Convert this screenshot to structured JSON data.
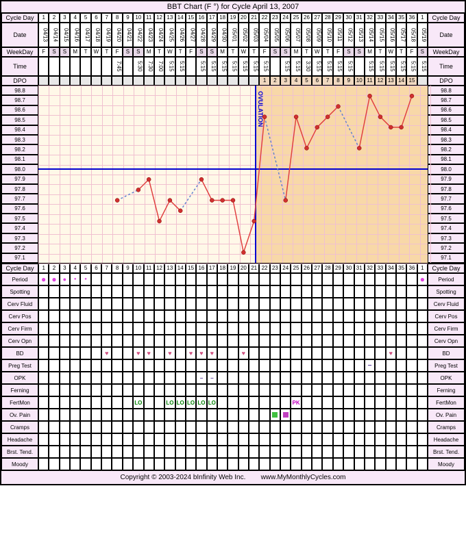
{
  "title": "BBT Chart (F °) for Cycle April 13, 2007",
  "footer_left": "Copyright © 2003-2024 bInfinity Web Inc.",
  "footer_right": "www.MyMonthlyCycles.com",
  "num_days": 37,
  "labels": {
    "cycle_day": "Cycle Day",
    "date": "Date",
    "weekday": "WeekDay",
    "time": "Time",
    "dpo": "DPO",
    "period": "Period",
    "spotting": "Spotting",
    "cerv_fluid": "Cerv Fluid",
    "cerv_pos": "Cerv Pos",
    "cerv_firm": "Cerv Firm",
    "cerv_opn": "Cerv Opn",
    "bd": "BD",
    "preg_test": "Preg Test",
    "opk": "OPK",
    "ferning": "Ferning",
    "fertmon": "FertMon",
    "ov_pain": "Ov. Pain",
    "cramps": "Cramps",
    "headache": "Headache",
    "brst_tend": "Brst. Tend.",
    "moody": "Moody"
  },
  "cycle_days": [
    1,
    2,
    3,
    4,
    5,
    6,
    7,
    8,
    9,
    10,
    11,
    12,
    13,
    14,
    15,
    16,
    17,
    18,
    19,
    20,
    21,
    22,
    23,
    24,
    25,
    26,
    27,
    28,
    29,
    30,
    31,
    32,
    33,
    34,
    35,
    36,
    1
  ],
  "dates": [
    "04/13",
    "04/14",
    "04/15",
    "04/16",
    "04/17",
    "04/18",
    "04/19",
    "04/20",
    "04/21",
    "04/22",
    "04/23",
    "04/24",
    "04/25",
    "04/26",
    "04/27",
    "04/28",
    "04/29",
    "04/30",
    "05/01",
    "05/02",
    "05/03",
    "05/04",
    "05/05",
    "05/06",
    "05/07",
    "05/08",
    "05/09",
    "05/10",
    "05/11",
    "05/12",
    "05/13",
    "05/14",
    "05/15",
    "05/16",
    "05/17",
    "05/18",
    "05/19"
  ],
  "weekdays": [
    "F",
    "S",
    "S",
    "M",
    "T",
    "W",
    "T",
    "F",
    "S",
    "S",
    "M",
    "T",
    "W",
    "T",
    "F",
    "S",
    "S",
    "M",
    "T",
    "W",
    "T",
    "F",
    "S",
    "S",
    "M",
    "T",
    "W",
    "T",
    "F",
    "S",
    "S",
    "M",
    "T",
    "W",
    "T",
    "F",
    "S"
  ],
  "times": [
    "",
    "",
    "",
    "",
    "",
    "",
    "",
    "7:45",
    "",
    "5:30",
    "7:30",
    "7:00",
    "5:15",
    "5:15",
    "",
    "5:15",
    "5:15",
    "5:15",
    "5:15",
    "5:15",
    "5:15",
    "5:15",
    "",
    "5:15",
    "5:15",
    "3:30",
    "5:15",
    "5:15",
    "5:15",
    "5:15",
    "",
    "5:15",
    "5:15",
    "5:15",
    "5:15",
    "5:15",
    "5:15"
  ],
  "dpo": [
    "",
    "",
    "",
    "",
    "",
    "",
    "",
    "",
    "",
    "",
    "",
    "",
    "",
    "",
    "",
    "",
    "",
    "",
    "",
    "",
    "",
    "1",
    "2",
    "3",
    "4",
    "5",
    "6",
    "7",
    "8",
    "9",
    "10",
    "11",
    "12",
    "13",
    "14",
    "15",
    ""
  ],
  "dpo_has": [
    false,
    false,
    false,
    false,
    false,
    false,
    false,
    false,
    false,
    false,
    false,
    false,
    false,
    false,
    false,
    false,
    false,
    false,
    false,
    false,
    false,
    true,
    true,
    true,
    true,
    true,
    true,
    true,
    true,
    true,
    true,
    true,
    true,
    true,
    true,
    true,
    false
  ],
  "temps_y": [
    98.8,
    98.7,
    98.6,
    98.5,
    98.4,
    98.3,
    98.2,
    98.1,
    98.0,
    97.9,
    97.8,
    97.7,
    97.6,
    97.5,
    97.4,
    97.3,
    97.2,
    97.1
  ],
  "cover_line_temp": 98.0,
  "ovulation_day": 21,
  "luteal_start_day": 21,
  "temp_points": [
    {
      "day": 8,
      "temp": 97.7,
      "dashed_next": true
    },
    {
      "day": 10,
      "temp": 97.8,
      "dashed_next": false
    },
    {
      "day": 11,
      "temp": 97.9,
      "dashed_next": false
    },
    {
      "day": 12,
      "temp": 97.5,
      "dashed_next": false
    },
    {
      "day": 13,
      "temp": 97.7,
      "dashed_next": false
    },
    {
      "day": 14,
      "temp": 97.6,
      "dashed_next": true
    },
    {
      "day": 16,
      "temp": 97.9,
      "dashed_next": false
    },
    {
      "day": 17,
      "temp": 97.7,
      "dashed_next": false
    },
    {
      "day": 18,
      "temp": 97.7,
      "dashed_next": false
    },
    {
      "day": 19,
      "temp": 97.7,
      "dashed_next": false
    },
    {
      "day": 20,
      "temp": 97.2,
      "dashed_next": false
    },
    {
      "day": 21,
      "temp": 97.5,
      "dashed_next": false
    },
    {
      "day": 22,
      "temp": 98.5,
      "dashed_next": true
    },
    {
      "day": 24,
      "temp": 97.7,
      "dashed_next": false
    },
    {
      "day": 25,
      "temp": 98.5,
      "dashed_next": false
    },
    {
      "day": 26,
      "temp": 98.2,
      "dashed_next": false
    },
    {
      "day": 27,
      "temp": 98.4,
      "dashed_next": false
    },
    {
      "day": 28,
      "temp": 98.5,
      "dashed_next": false
    },
    {
      "day": 29,
      "temp": 98.6,
      "dashed_next": true
    },
    {
      "day": 31,
      "temp": 98.2,
      "dashed_next": false
    },
    {
      "day": 32,
      "temp": 98.7,
      "dashed_next": false
    },
    {
      "day": 33,
      "temp": 98.5,
      "dashed_next": false
    },
    {
      "day": 34,
      "temp": 98.4,
      "dashed_next": false
    },
    {
      "day": 35,
      "temp": 98.4,
      "dashed_next": false
    },
    {
      "day": 36,
      "temp": 98.7,
      "dashed_next": false
    }
  ],
  "period": [
    3,
    3,
    2,
    1,
    1,
    0,
    0,
    0,
    0,
    0,
    0,
    0,
    0,
    0,
    0,
    0,
    0,
    0,
    0,
    0,
    0,
    0,
    0,
    0,
    0,
    0,
    0,
    0,
    0,
    0,
    0,
    0,
    0,
    0,
    0,
    0,
    3
  ],
  "bd": [
    0,
    0,
    0,
    0,
    0,
    0,
    1,
    0,
    0,
    1,
    1,
    0,
    1,
    0,
    1,
    1,
    1,
    0,
    0,
    1,
    0,
    0,
    0,
    0,
    0,
    0,
    0,
    0,
    0,
    0,
    0,
    0,
    0,
    1,
    0,
    0,
    0
  ],
  "opk": [
    0,
    0,
    0,
    0,
    0,
    0,
    0,
    0,
    0,
    0,
    0,
    0,
    0,
    0,
    0,
    1,
    1,
    0,
    0,
    0,
    0,
    0,
    0,
    0,
    0,
    0,
    0,
    0,
    0,
    0,
    0,
    0,
    0,
    0,
    0,
    0,
    0
  ],
  "fertmon": [
    "",
    "",
    "",
    "",
    "",
    "",
    "",
    "",
    "",
    "LO",
    "",
    "",
    "LO",
    "LO",
    "LO",
    "LO",
    "LO",
    "",
    "",
    "",
    "",
    "",
    "",
    "",
    "PK",
    "",
    "",
    "",
    "",
    "",
    "",
    "",
    "",
    "",
    "",
    "",
    ""
  ],
  "ov_pain": [
    0,
    0,
    0,
    0,
    0,
    0,
    0,
    0,
    0,
    0,
    0,
    0,
    0,
    0,
    0,
    0,
    0,
    0,
    0,
    0,
    0,
    0,
    1,
    2,
    0,
    0,
    0,
    0,
    0,
    0,
    0,
    0,
    0,
    0,
    0,
    0,
    0
  ],
  "preg_test": [
    0,
    0,
    0,
    0,
    0,
    0,
    0,
    0,
    0,
    0,
    0,
    0,
    0,
    0,
    0,
    0,
    0,
    0,
    0,
    0,
    0,
    0,
    0,
    0,
    0,
    0,
    0,
    0,
    0,
    0,
    0,
    1,
    0,
    0,
    0,
    0,
    0
  ],
  "colors": {
    "title_bg": "#f8e8f8",
    "label_bg": "#f8e8f8",
    "chart_bg": "#fff8e8",
    "luteal_bg": "#f8d8a8",
    "grid_line": "#f0c0d0",
    "cover_line": "#0000d0",
    "temp_line": "#e04040",
    "temp_point": "#d03030",
    "period_dot": "#e040e0",
    "heart": "#d05080",
    "dpo_bg": "#f0d8c0"
  }
}
